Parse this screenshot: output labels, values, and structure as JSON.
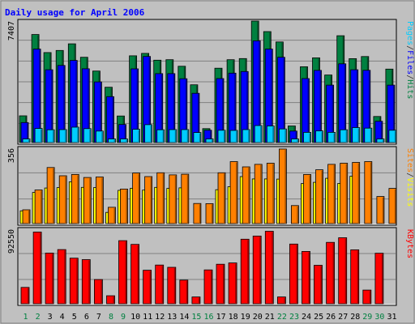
{
  "chart_data": {
    "title": "Daily usage for April 2006",
    "type": "bar",
    "categories": [
      "1",
      "2",
      "3",
      "4",
      "5",
      "6",
      "7",
      "8",
      "9",
      "10",
      "11",
      "12",
      "13",
      "14",
      "15",
      "16",
      "17",
      "18",
      "19",
      "20",
      "21",
      "22",
      "23",
      "24",
      "25",
      "26",
      "27",
      "28",
      "29",
      "30",
      "31"
    ],
    "weekend_days": [
      "1",
      "2",
      "8",
      "9",
      "15",
      "16",
      "22",
      "23",
      "29",
      "30"
    ],
    "panels": [
      {
        "id": "hits-panel",
        "max_label": "7407",
        "ymax": 7407,
        "legend": [
          {
            "text": "Pages",
            "color": "#00CCFF"
          },
          {
            "text": "/",
            "color": "#333333"
          },
          {
            "text": "Files",
            "color": "#0000FF"
          },
          {
            "text": "/",
            "color": "#333333"
          },
          {
            "text": "Hits",
            "color": "#008040"
          }
        ],
        "series": [
          {
            "name": "Hits",
            "color": "#008040",
            "values": [
              1630,
              6586,
              5484,
              5616,
              6021,
              5200,
              4362,
              3373,
              1620,
              5291,
              5435,
              5021,
              5054,
              4651,
              3522,
              850,
              4534,
              5053,
              5123,
              7407,
              6766,
              6132,
              1013,
              4622,
              5165,
              4119,
              6515,
              5115,
              5242,
              1589,
              4480
            ]
          },
          {
            "name": "Files",
            "color": "#0000FF",
            "values": [
              1220,
              5700,
              4437,
              4699,
              5006,
              4500,
              3697,
              2800,
              1100,
              4496,
              5251,
              4200,
              4200,
              3890,
              3000,
              750,
              3900,
              4234,
              4331,
              6200,
              5698,
              5200,
              700,
              3900,
              4399,
              3500,
              4800,
              4437,
              4405,
              1300,
              3500
            ]
          },
          {
            "name": "Pages",
            "color": "#00CCFF",
            "values": [
              220,
              860,
              780,
              790,
              939,
              850,
              700,
              220,
              220,
              812,
              1091,
              780,
              790,
              790,
              610,
              220,
              750,
              741,
              790,
              1038,
              1012,
              831,
              220,
              620,
              710,
              620,
              780,
              915,
              880,
              220,
              750
            ]
          }
        ]
      },
      {
        "id": "visits-panel",
        "max_label": "356",
        "ymax": 356,
        "legend": [
          {
            "text": "Sites",
            "color": "#FF8000"
          },
          {
            "text": "/",
            "color": "#333333"
          },
          {
            "text": "Visits",
            "color": "#FFFF00"
          }
        ],
        "series": [
          {
            "name": "Visits",
            "color": "#FFFF00",
            "values": [
              60,
              147,
              168,
              170,
              197,
              171,
              170,
              53,
              157,
              167,
              158,
              171,
              166,
              169,
              0,
              0,
              160,
              174,
              222,
              211,
              211,
              210,
              0,
              189,
              195,
              214,
              190,
              224,
              0,
              0,
              0
            ]
          },
          {
            "name": "Sites",
            "color": "#FF8000",
            "values": [
              65,
              159,
              265,
              226,
              232,
              218,
              220,
              77,
              163,
              239,
              222,
              240,
              230,
              233,
              95,
              94,
              240,
              293,
              268,
              280,
              285,
              352,
              85,
              232,
              254,
              280,
              285,
              289,
              293,
              128,
              166
            ]
          }
        ]
      },
      {
        "id": "kbytes-panel",
        "max_label": "92550",
        "ymax": 92550,
        "legend": [
          {
            "text": "KBytes",
            "color": "#FF0000"
          }
        ],
        "series": [
          {
            "name": "KBytes",
            "color": "#FF0000",
            "values": [
              20340,
              88980,
              63000,
              67280,
              56600,
              54780,
              30060,
              10000,
              78400,
              73700,
              41600,
              48050,
              45300,
              29400,
              8500,
              42000,
              49100,
              50750,
              80200,
              84150,
              90000,
              8500,
              74150,
              65000,
              47800,
              76300,
              82000,
              67000,
              17050,
              62800,
              0
            ]
          }
        ]
      }
    ],
    "colors": {
      "background": "#C0C0C0",
      "plot_bg": "#C0C0C0",
      "grid": "#808080",
      "title": "#0000FF",
      "axis_text": "#000000",
      "weekend_text": "#008040"
    }
  }
}
